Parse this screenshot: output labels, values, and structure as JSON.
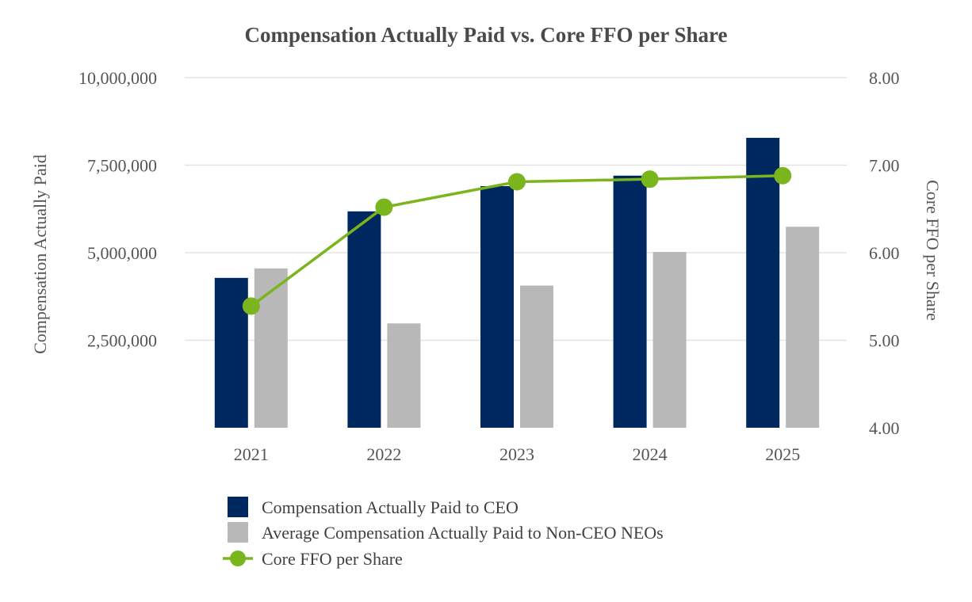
{
  "chart_data": {
    "type": "bar+line",
    "title": "Compensation Actually Paid vs. Core FFO per Share",
    "categories": [
      "2021",
      "2022",
      "2023",
      "2024",
      "2025"
    ],
    "y_left": {
      "label": "Compensation Actually Paid",
      "range": [
        0,
        10000000
      ],
      "ticks": [
        {
          "value": 2500000,
          "label": "2,500,000"
        },
        {
          "value": 5000000,
          "label": "5,000,000"
        },
        {
          "value": 7500000,
          "label": "7,500,000"
        },
        {
          "value": 10000000,
          "label": "10,000,000"
        }
      ]
    },
    "y_right": {
      "label": "Core FFO per Share",
      "range": [
        4.0,
        8.0
      ],
      "ticks": [
        {
          "value": 4.0,
          "label": "4.00"
        },
        {
          "value": 5.0,
          "label": "5.00"
        },
        {
          "value": 6.0,
          "label": "6.00"
        },
        {
          "value": 7.0,
          "label": "7.00"
        },
        {
          "value": 8.0,
          "label": "8.00"
        }
      ]
    },
    "series": [
      {
        "name": "Compensation Actually Paid to CEO",
        "kind": "bar",
        "axis": "left",
        "color": "#002860",
        "values": [
          4280000,
          6180000,
          6900000,
          7200000,
          8280000
        ]
      },
      {
        "name": "Average Compensation Actually Paid to Non-CEO NEOs",
        "kind": "bar",
        "axis": "left",
        "color": "#b8b8b8",
        "values": [
          4550000,
          2980000,
          4060000,
          5020000,
          5740000
        ]
      },
      {
        "name": "Core FFO per Share",
        "kind": "line",
        "axis": "right",
        "color": "#7ab51d",
        "values": [
          5.39,
          6.52,
          6.81,
          6.84,
          6.88
        ]
      }
    ],
    "grid": true,
    "legend_position": "bottom"
  }
}
